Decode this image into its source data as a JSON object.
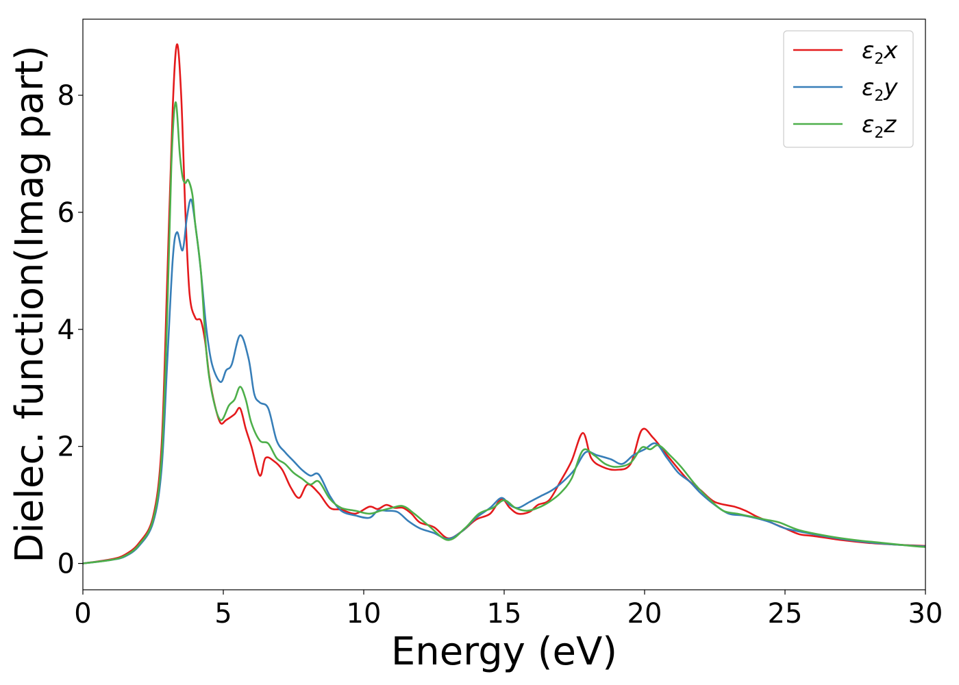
{
  "chart_data": {
    "type": "line",
    "xlabel": "Energy (eV)",
    "ylabel": "Dielec. function(Imag part)",
    "xlim": [
      0,
      30
    ],
    "ylim": [
      -0.45,
      9.3
    ],
    "xticks": [
      0,
      5,
      10,
      15,
      20,
      25,
      30
    ],
    "yticks": [
      0,
      2,
      4,
      6,
      8
    ],
    "grid": false,
    "legend_position": "top-right",
    "series": [
      {
        "name": "ε2x",
        "legend_base": "ε",
        "legend_sub": "2",
        "legend_var": "x",
        "color": "#e41a1c",
        "x": [
          0,
          1,
          1.5,
          2,
          2.5,
          2.8,
          3.0,
          3.2,
          3.35,
          3.5,
          3.65,
          3.8,
          4.0,
          4.2,
          4.35,
          4.5,
          4.7,
          4.9,
          5.1,
          5.4,
          5.6,
          5.8,
          6.0,
          6.3,
          6.5,
          6.8,
          7.1,
          7.4,
          7.7,
          8.0,
          8.4,
          8.8,
          9.2,
          9.7,
          10.2,
          10.5,
          10.8,
          11.1,
          11.4,
          11.7,
          12.0,
          12.5,
          13.0,
          13.5,
          14.0,
          14.5,
          14.9,
          15.2,
          15.5,
          15.9,
          16.2,
          16.6,
          17.0,
          17.4,
          17.8,
          18.1,
          18.5,
          19.0,
          19.5,
          19.9,
          20.3,
          20.8,
          21.5,
          22.0,
          22.5,
          23.2,
          23.6,
          24.0,
          24.5,
          25.0,
          25.5,
          26.0,
          27.0,
          28.0,
          29.0,
          30.0
        ],
        "values": [
          0,
          0.07,
          0.15,
          0.35,
          0.8,
          2.0,
          4.8,
          7.8,
          8.87,
          8.0,
          6.0,
          4.6,
          4.2,
          4.15,
          3.8,
          3.2,
          2.7,
          2.4,
          2.45,
          2.55,
          2.65,
          2.3,
          2.0,
          1.5,
          1.8,
          1.75,
          1.6,
          1.3,
          1.12,
          1.35,
          1.2,
          0.95,
          0.92,
          0.85,
          0.97,
          0.93,
          1.0,
          0.95,
          0.95,
          0.85,
          0.7,
          0.62,
          0.43,
          0.55,
          0.75,
          0.85,
          1.1,
          0.95,
          0.85,
          0.88,
          1.0,
          1.08,
          1.4,
          1.75,
          2.23,
          1.8,
          1.65,
          1.6,
          1.7,
          2.28,
          2.15,
          1.85,
          1.45,
          1.25,
          1.05,
          0.97,
          0.9,
          0.8,
          0.7,
          0.6,
          0.5,
          0.47,
          0.4,
          0.35,
          0.32,
          0.3
        ]
      },
      {
        "name": "ε2y",
        "legend_base": "ε",
        "legend_sub": "2",
        "legend_var": "y",
        "color": "#377eb8",
        "x": [
          0,
          1,
          1.5,
          2,
          2.5,
          2.8,
          3.0,
          3.2,
          3.35,
          3.55,
          3.7,
          3.85,
          4.0,
          4.2,
          4.4,
          4.6,
          4.9,
          5.1,
          5.3,
          5.6,
          5.9,
          6.1,
          6.3,
          6.6,
          6.9,
          7.2,
          7.5,
          7.8,
          8.1,
          8.4,
          8.8,
          9.2,
          9.7,
          10.2,
          10.5,
          10.8,
          11.2,
          11.6,
          12.0,
          12.5,
          13.0,
          13.5,
          14.0,
          14.5,
          14.9,
          15.2,
          15.5,
          15.9,
          16.3,
          16.7,
          17.1,
          17.5,
          17.9,
          18.3,
          18.8,
          19.2,
          19.6,
          20.0,
          20.4,
          20.8,
          21.2,
          21.6,
          22.0,
          22.5,
          23.0,
          23.5,
          24.0,
          24.5,
          25.0,
          26.0,
          27.0,
          28.0,
          29.0,
          30.0
        ],
        "values": [
          0,
          0.06,
          0.12,
          0.3,
          0.7,
          1.6,
          3.4,
          5.2,
          5.66,
          5.35,
          5.9,
          6.22,
          5.8,
          5.0,
          4.0,
          3.4,
          3.1,
          3.3,
          3.4,
          3.9,
          3.5,
          2.9,
          2.75,
          2.65,
          2.1,
          1.9,
          1.75,
          1.6,
          1.5,
          1.52,
          1.15,
          0.9,
          0.82,
          0.78,
          0.9,
          0.9,
          0.88,
          0.72,
          0.6,
          0.52,
          0.42,
          0.55,
          0.78,
          0.95,
          1.12,
          1.0,
          0.95,
          1.05,
          1.15,
          1.25,
          1.4,
          1.6,
          1.9,
          1.85,
          1.78,
          1.7,
          1.85,
          1.95,
          2.05,
          1.8,
          1.55,
          1.4,
          1.2,
          1.0,
          0.85,
          0.82,
          0.77,
          0.7,
          0.6,
          0.5,
          0.42,
          0.36,
          0.32,
          0.29
        ]
      },
      {
        "name": "ε2z",
        "legend_base": "ε",
        "legend_sub": "2",
        "legend_var": "z",
        "color": "#4daf4a",
        "x": [
          0,
          1,
          1.5,
          2,
          2.5,
          2.8,
          3.0,
          3.15,
          3.3,
          3.45,
          3.55,
          3.65,
          3.75,
          3.9,
          4.0,
          4.2,
          4.4,
          4.6,
          4.9,
          5.2,
          5.4,
          5.6,
          5.8,
          6.0,
          6.3,
          6.6,
          6.9,
          7.2,
          7.5,
          7.8,
          8.1,
          8.4,
          8.8,
          9.2,
          9.7,
          10.2,
          10.6,
          11.0,
          11.4,
          11.8,
          12.3,
          13.0,
          13.6,
          14.1,
          14.6,
          15.0,
          15.4,
          15.8,
          16.2,
          16.6,
          17.0,
          17.4,
          17.8,
          18.2,
          18.6,
          19.0,
          19.5,
          19.9,
          20.2,
          20.5,
          20.9,
          21.3,
          21.8,
          22.3,
          22.8,
          23.3,
          23.8,
          24.3,
          24.8,
          25.5,
          26.5,
          27.5,
          28.5,
          29.5,
          30.0
        ],
        "values": [
          0,
          0.06,
          0.13,
          0.32,
          0.75,
          1.8,
          4.2,
          6.8,
          7.88,
          7.0,
          6.6,
          6.5,
          6.55,
          6.3,
          5.8,
          5.0,
          3.6,
          2.9,
          2.45,
          2.7,
          2.8,
          3.02,
          2.8,
          2.4,
          2.1,
          2.05,
          1.8,
          1.7,
          1.55,
          1.45,
          1.35,
          1.4,
          1.1,
          0.95,
          0.9,
          0.85,
          0.9,
          0.95,
          0.98,
          0.85,
          0.65,
          0.4,
          0.6,
          0.85,
          0.95,
          1.08,
          0.95,
          0.9,
          0.95,
          1.05,
          1.2,
          1.45,
          1.93,
          1.85,
          1.7,
          1.65,
          1.72,
          1.98,
          1.95,
          2.02,
          1.85,
          1.65,
          1.35,
          1.1,
          0.9,
          0.85,
          0.8,
          0.75,
          0.7,
          0.57,
          0.47,
          0.4,
          0.35,
          0.3,
          0.28
        ]
      }
    ]
  }
}
